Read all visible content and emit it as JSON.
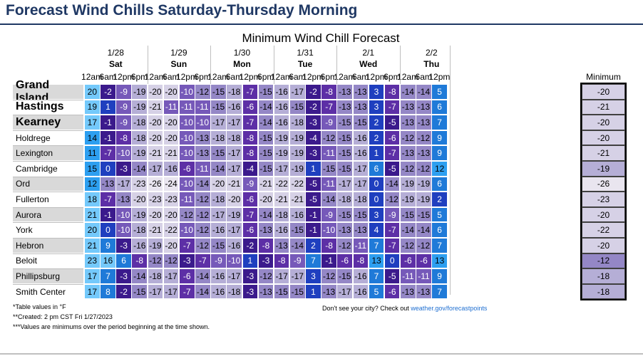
{
  "header": {
    "title": "Forecast Wind Chills Saturday-Thursday Morning"
  },
  "chart_data": {
    "type": "table",
    "title": "Minimum Wind Chill Forecast",
    "days": [
      {
        "date": "1/28",
        "day": "Sat",
        "times": [
          "12am",
          "6am",
          "12pm",
          "6pm"
        ]
      },
      {
        "date": "1/29",
        "day": "Sun",
        "times": [
          "12am",
          "6am",
          "12pm",
          "6pm"
        ]
      },
      {
        "date": "1/30",
        "day": "Mon",
        "times": [
          "12am",
          "6am",
          "12pm",
          "6pm"
        ]
      },
      {
        "date": "1/31",
        "day": "Tue",
        "times": [
          "12am",
          "6am",
          "12pm",
          "6pm"
        ]
      },
      {
        "date": "2/1",
        "day": "Wed",
        "times": [
          "12am",
          "6am",
          "12pm",
          "6pm"
        ]
      },
      {
        "date": "2/2",
        "day": "Thu",
        "times": [
          "12am",
          "6am",
          "12pm"
        ]
      }
    ],
    "minimum_header": "Minimum",
    "rows": [
      {
        "city": "Grand Island",
        "emphasis": true,
        "values": [
          20,
          -2,
          -9,
          -19,
          -20,
          -20,
          -10,
          -12,
          -15,
          -18,
          -7,
          -15,
          -16,
          -17,
          -2,
          -8,
          -13,
          -13,
          3,
          -8,
          -14,
          -14,
          5
        ],
        "minimum": -20
      },
      {
        "city": "Hastings",
        "emphasis": true,
        "values": [
          19,
          1,
          -9,
          -19,
          -21,
          -11,
          -11,
          -11,
          -15,
          -16,
          -6,
          -14,
          -16,
          -15,
          -2,
          -7,
          -13,
          -13,
          3,
          -7,
          -13,
          -13,
          6
        ],
        "minimum": -21
      },
      {
        "city": "Kearney",
        "emphasis": true,
        "values": [
          17,
          -1,
          -9,
          -18,
          -20,
          -20,
          -10,
          -10,
          -17,
          -17,
          -7,
          -14,
          -16,
          -18,
          -3,
          -9,
          -15,
          -15,
          2,
          -5,
          -13,
          -13,
          7
        ],
        "minimum": -20
      },
      {
        "city": "Holdrege",
        "emphasis": false,
        "values": [
          14,
          -1,
          -8,
          -18,
          -20,
          -20,
          -10,
          -13,
          -18,
          -18,
          -8,
          -15,
          -19,
          -19,
          -4,
          -12,
          -15,
          -16,
          2,
          -6,
          -12,
          -12,
          9
        ],
        "minimum": -20
      },
      {
        "city": "Lexington",
        "emphasis": false,
        "values": [
          11,
          -7,
          -10,
          -19,
          -21,
          -21,
          -10,
          -13,
          -15,
          -17,
          -8,
          -15,
          -19,
          -19,
          -3,
          -11,
          -15,
          -16,
          1,
          -7,
          -13,
          -13,
          9
        ],
        "minimum": -21
      },
      {
        "city": "Cambridge",
        "emphasis": false,
        "values": [
          15,
          0,
          -3,
          -14,
          -17,
          -16,
          -6,
          -11,
          -14,
          -17,
          -4,
          -15,
          -17,
          -19,
          1,
          -15,
          -15,
          -17,
          6,
          -5,
          -12,
          -12,
          12
        ],
        "minimum": -19
      },
      {
        "city": "Ord",
        "emphasis": false,
        "values": [
          12,
          -13,
          -17,
          -23,
          -26,
          -24,
          -10,
          -14,
          -20,
          -21,
          -9,
          -21,
          -22,
          -22,
          -5,
          -11,
          -17,
          -17,
          0,
          -14,
          -19,
          -19,
          6
        ],
        "minimum": -26
      },
      {
        "city": "Fullerton",
        "emphasis": false,
        "values": [
          18,
          -7,
          -13,
          -20,
          -23,
          -23,
          -11,
          -12,
          -18,
          -20,
          -6,
          -20,
          -21,
          -21,
          -5,
          -14,
          -18,
          -18,
          0,
          -12,
          -19,
          -19,
          2
        ],
        "minimum": -23
      },
      {
        "city": "Aurora",
        "emphasis": false,
        "values": [
          21,
          -1,
          -10,
          -19,
          -20,
          -20,
          -12,
          -12,
          -17,
          -19,
          -7,
          -14,
          -18,
          -16,
          -1,
          -9,
          -15,
          -15,
          3,
          -9,
          -15,
          -15,
          5
        ],
        "minimum": -20
      },
      {
        "city": "York",
        "emphasis": false,
        "values": [
          20,
          0,
          -10,
          -18,
          -21,
          -22,
          -10,
          -12,
          -16,
          -17,
          -6,
          -13,
          -16,
          -15,
          -1,
          -10,
          -13,
          -13,
          4,
          -7,
          -14,
          -14,
          6
        ],
        "minimum": -22
      },
      {
        "city": "Hebron",
        "emphasis": false,
        "values": [
          21,
          9,
          -3,
          -16,
          -19,
          -20,
          -7,
          -12,
          -15,
          -16,
          -2,
          -8,
          -13,
          -14,
          2,
          -8,
          -12,
          -11,
          7,
          -7,
          -12,
          -12,
          7
        ],
        "minimum": -20
      },
      {
        "city": "Beloit",
        "emphasis": false,
        "values": [
          23,
          16,
          6,
          -8,
          -12,
          -12,
          -3,
          -7,
          -9,
          -10,
          1,
          -3,
          -8,
          -9,
          7,
          -1,
          -6,
          -8,
          13,
          0,
          -6,
          -6,
          13
        ],
        "minimum": -12
      },
      {
        "city": "Phillipsburg",
        "emphasis": false,
        "values": [
          17,
          7,
          -3,
          -14,
          -18,
          -17,
          -6,
          -14,
          -16,
          -17,
          -3,
          -12,
          -17,
          -17,
          3,
          -12,
          -15,
          -16,
          7,
          -5,
          -11,
          -11,
          9
        ],
        "minimum": -18
      },
      {
        "city": "Smith Center",
        "emphasis": false,
        "values": [
          17,
          8,
          -2,
          -15,
          -17,
          -17,
          -7,
          -14,
          -16,
          -18,
          -3,
          -13,
          -15,
          -15,
          1,
          -13,
          -17,
          -16,
          5,
          -6,
          -13,
          -13,
          7
        ],
        "minimum": -18
      }
    ]
  },
  "notes": {
    "line1": "*Table values in °F",
    "line2": "**Created: 2 pm CST Fri 1/27/2023",
    "line3": "***Values are minimums over the period beginning at the time shown.",
    "city_prompt": "Don't see your city? Check out",
    "city_link": "weather.gov/forecastpoints"
  }
}
